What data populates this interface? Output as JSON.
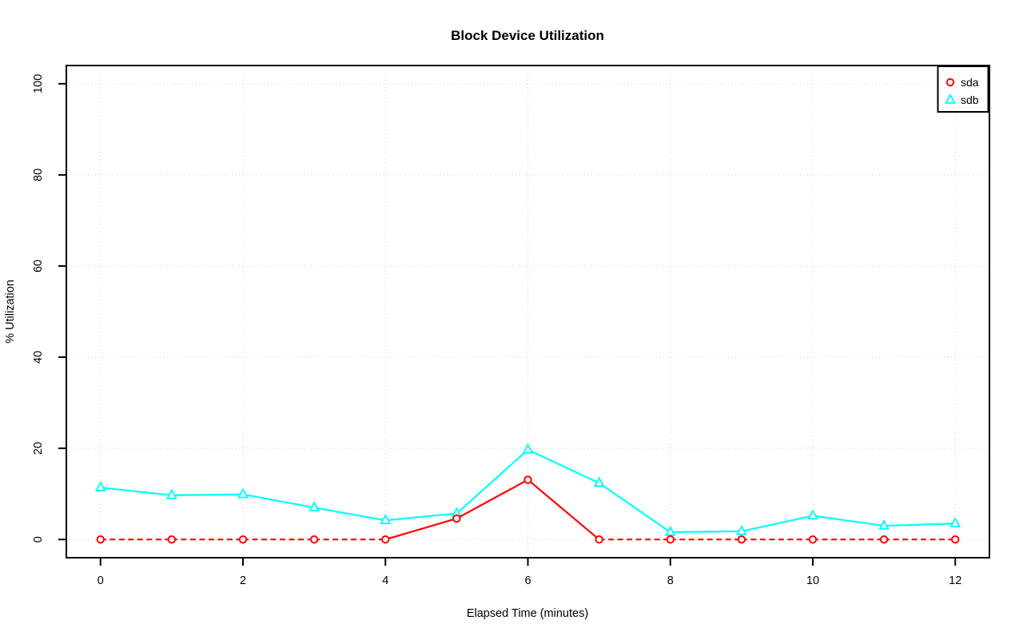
{
  "title": "Block Device Utilization",
  "axes": {
    "x": {
      "label": "Elapsed Time (minutes)",
      "ticks": [
        0,
        2,
        4,
        6,
        8,
        10,
        12
      ],
      "tick_labels": [
        "0",
        "2",
        "4",
        "6",
        "8",
        "10",
        "12"
      ],
      "range": [
        -0.48,
        12.48
      ]
    },
    "y": {
      "label": "% Utilization",
      "ticks": [
        0,
        20,
        40,
        60,
        80,
        100
      ],
      "tick_labels": [
        "0",
        "20",
        "40",
        "60",
        "80",
        "100"
      ],
      "range": [
        -4,
        104
      ]
    }
  },
  "legend": {
    "position": "top-right",
    "items": [
      {
        "label": "sda",
        "marker": "circle",
        "color": "#ff0000"
      },
      {
        "label": "sdb",
        "marker": "triangle",
        "color": "#00ffff"
      }
    ]
  },
  "chart_data": {
    "type": "line",
    "title": "Block Device Utilization",
    "xlabel": "Elapsed Time (minutes)",
    "ylabel": "% Utilization",
    "x": [
      0,
      1,
      2,
      3,
      4,
      5,
      6,
      7,
      8,
      9,
      10,
      11,
      12
    ],
    "series": [
      {
        "name": "sda",
        "marker": "circle",
        "color": "#ff0000",
        "line_style": "dashed-at-zero",
        "values": [
          0,
          0,
          0,
          0,
          0,
          4.6,
          13.1,
          0,
          0,
          0,
          0,
          0,
          0
        ]
      },
      {
        "name": "sdb",
        "marker": "triangle",
        "color": "#00ffff",
        "line_style": "solid",
        "values": [
          11.4,
          9.7,
          9.9,
          7.0,
          4.2,
          5.7,
          19.7,
          12.4,
          1.6,
          1.8,
          5.2,
          3.0,
          3.5
        ]
      }
    ],
    "xlim": [
      -0.48,
      12.48
    ],
    "ylim": [
      -4,
      104
    ],
    "grid": true,
    "grid_style": "dotted",
    "legend_position": "top-right"
  },
  "colors": {
    "sda": "#ff0000",
    "sdb": "#00ffff",
    "grid": "#d4d4d4",
    "axis": "#000000",
    "background": "#ffffff",
    "marker_fill": "#ffffff"
  }
}
